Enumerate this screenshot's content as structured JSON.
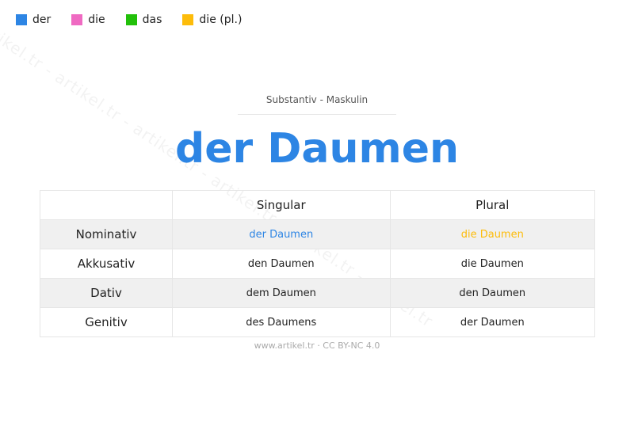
{
  "legend": [
    {
      "label": "der",
      "color": "#2d85e4"
    },
    {
      "label": "die",
      "color": "#ef6ac2"
    },
    {
      "label": "das",
      "color": "#22c00a"
    },
    {
      "label": "die (pl.)",
      "color": "#fdbc0a"
    }
  ],
  "watermark": "artikel.tr - artikel.tr - artikel.tr - artikel.tr - artikel.tr - artikel.tr",
  "subtitle": "Substantiv  -  Maskulin",
  "title": "der Daumen",
  "table": {
    "headers": [
      "",
      "Singular",
      "Plural"
    ],
    "rows": [
      {
        "case": "Nominativ",
        "singular": "der Daumen",
        "plural": "die Daumen"
      },
      {
        "case": "Akkusativ",
        "singular": "den Daumen",
        "plural": "die Daumen"
      },
      {
        "case": "Dativ",
        "singular": "dem Daumen",
        "plural": "den Daumen"
      },
      {
        "case": "Genitiv",
        "singular": "des Daumens",
        "plural": "der Daumen"
      }
    ],
    "nominative_colors": {
      "singular": "#2d85e4",
      "plural": "#fdbc0a"
    }
  },
  "footer": "www.artikel.tr · CC BY-NC 4.0"
}
